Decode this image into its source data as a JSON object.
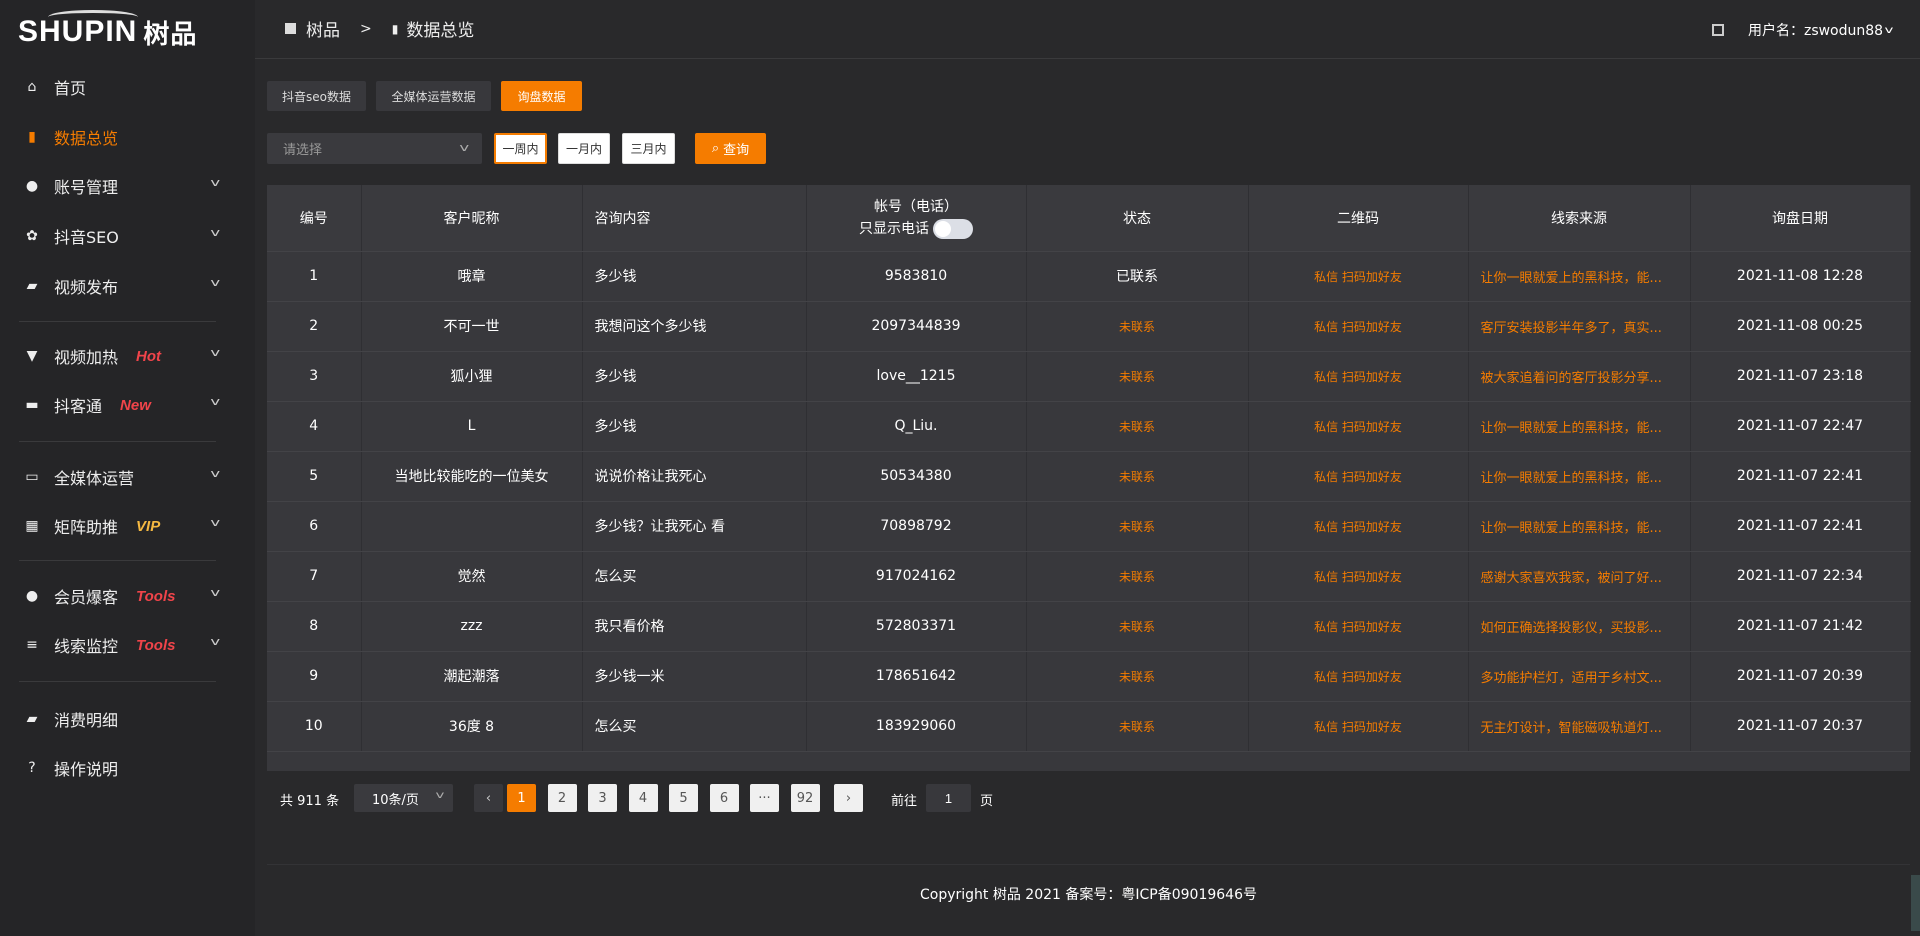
{
  "brand": {
    "logo_text": "SHUPIN",
    "logo_cn": "树品"
  },
  "sidebar": {
    "items": [
      {
        "label": "首页",
        "icon": "home-icon",
        "tag": ""
      },
      {
        "label": "数据总览",
        "icon": "bar-chart-icon",
        "tag": "",
        "active": true
      },
      {
        "label": "账号管理",
        "icon": "user-icon",
        "tag": ""
      },
      {
        "label": "抖音SEO",
        "icon": "gear-icon",
        "tag": ""
      },
      {
        "label": "视频发布",
        "icon": "camera-icon",
        "tag": ""
      },
      {
        "label": "视频加热",
        "icon": "brush-icon",
        "tag": "Hot"
      },
      {
        "label": "抖客通",
        "icon": "chat-icon",
        "tag": "New"
      },
      {
        "label": "全媒体运营",
        "icon": "monitor-icon",
        "tag": ""
      },
      {
        "label": "矩阵助推",
        "icon": "grid-icon",
        "tag": "VIP"
      },
      {
        "label": "会员爆客",
        "icon": "user-icon",
        "tag": "Tools"
      },
      {
        "label": "线索监控",
        "icon": "sliders-icon",
        "tag": "Tools"
      },
      {
        "label": "消费明细",
        "icon": "wallet-icon",
        "tag": ""
      },
      {
        "label": "操作说明",
        "icon": "help-icon",
        "tag": ""
      }
    ]
  },
  "tag_colors": {
    "Hot": "#f0444a",
    "New": "#f0444a",
    "VIP": "#f5b942",
    "Tools": "#f0444a"
  },
  "header": {
    "breadcrumb": [
      "树品",
      "数据总览"
    ],
    "separator": ">",
    "username": "用户名：zswodun88"
  },
  "tabs": [
    {
      "label": "抖音seo数据"
    },
    {
      "label": "全媒体运营数据"
    },
    {
      "label": "询盘数据",
      "active": true
    }
  ],
  "filters": {
    "select_placeholder": "请选择",
    "ranges": [
      "一周内",
      "一月内",
      "三月内"
    ],
    "active_range": "一周内",
    "query_label": "查询"
  },
  "table": {
    "columns": [
      "编号",
      "客户昵称",
      "咨询内容",
      "帐号（电话）",
      "状态",
      "二维码",
      "线索来源",
      "询盘日期"
    ],
    "phone_toggle_label": "只显示电话",
    "phone_toggle_on": false,
    "rows": [
      [
        "1",
        "哦章",
        "多少钱",
        "9583810",
        "已联系",
        "私信 扫码加好友",
        "让你一眼就爱上的黑科技，能...",
        "2021-11-08 12:28"
      ],
      [
        "2",
        "不可一世",
        "我想问这个多少钱",
        "2097344839",
        "未联系",
        "私信 扫码加好友",
        "客厅安装投影半年多了，真实...",
        "2021-11-08 00:25"
      ],
      [
        "3",
        "狐小狸",
        "多少钱",
        "love__1215",
        "未联系",
        "私信 扫码加好友",
        "被大家追着问的客厅投影分享...",
        "2021-11-07 23:18"
      ],
      [
        "4",
        "L",
        "多少钱",
        "Q_Liu.",
        "未联系",
        "私信 扫码加好友",
        "让你一眼就爱上的黑科技，能...",
        "2021-11-07 22:47"
      ],
      [
        "5",
        "当地比较能吃的一位美女",
        "说说价格让我死心",
        "50534380",
        "未联系",
        "私信 扫码加好友",
        "让你一眼就爱上的黑科技，能...",
        "2021-11-07 22:41"
      ],
      [
        "6",
        "",
        "多少钱？让我死心 看",
        "70898792",
        "未联系",
        "私信 扫码加好友",
        "让你一眼就爱上的黑科技，能...",
        "2021-11-07 22:41"
      ],
      [
        "7",
        "觉然",
        "怎么买",
        "917024162",
        "未联系",
        "私信 扫码加好友",
        "感谢大家喜欢我家，被问了好...",
        "2021-11-07 22:34"
      ],
      [
        "8",
        "zzz",
        "我只看价格",
        "572803371",
        "未联系",
        "私信 扫码加好友",
        "如何正确选择投影仪，买投影...",
        "2021-11-07 21:42"
      ],
      [
        "9",
        "潮起潮落",
        "多少钱一米",
        "178651642",
        "未联系",
        "私信 扫码加好友",
        "多功能护栏灯，适用于乡村文...",
        "2021-11-07 20:39"
      ],
      [
        "10",
        "36度 8",
        "怎么买",
        "183929060",
        "未联系",
        "私信 扫码加好友",
        "无主灯设计，智能磁吸轨道灯...",
        "2021-11-07 20:37"
      ]
    ]
  },
  "pagination": {
    "total_label": "共 911 条",
    "page_size": "10条/页",
    "pages": [
      "1",
      "2",
      "3",
      "4",
      "5",
      "6",
      "···",
      "92"
    ],
    "current": "1",
    "goto_label": "前往",
    "goto_value": "1",
    "goto_suffix": "页"
  },
  "footer": {
    "copyright": "Copyright 树品 2021 备案号：粤ICP备09019646号"
  },
  "colors": {
    "accent": "#f57c00",
    "background": "#29292b",
    "sidebar": "#252527",
    "table": "#38383c"
  }
}
